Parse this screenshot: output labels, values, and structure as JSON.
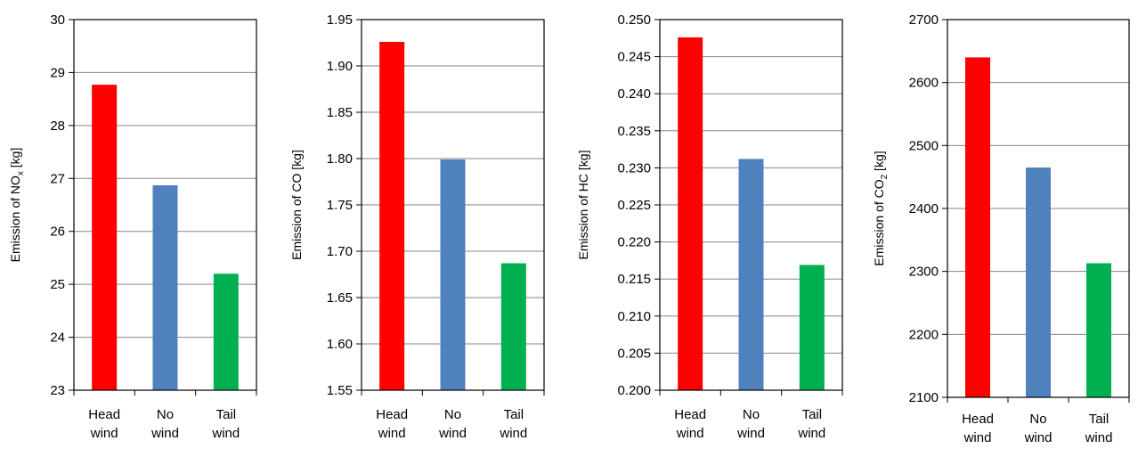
{
  "chart_data": [
    {
      "type": "bar",
      "categories": [
        [
          "Head",
          "wind"
        ],
        [
          "No",
          "wind"
        ],
        [
          "Tail",
          "wind"
        ]
      ],
      "values": [
        28.77,
        26.87,
        25.2
      ],
      "colors": [
        "#ff0000",
        "#4f81bd",
        "#00b050"
      ],
      "ylabel_parts": [
        [
          "Emission of NO",
          ""
        ],
        [
          "x",
          "sub"
        ],
        [
          " [kg]",
          ""
        ]
      ],
      "ylim": [
        23,
        30
      ],
      "yticks": [
        "23",
        "24",
        "25",
        "26",
        "27",
        "28",
        "29",
        "30"
      ],
      "grid": true,
      "legend": "none"
    },
    {
      "type": "bar",
      "categories": [
        [
          "Head",
          "wind"
        ],
        [
          "No",
          "wind"
        ],
        [
          "Tail",
          "wind"
        ]
      ],
      "values": [
        1.926,
        1.799,
        1.687
      ],
      "colors": [
        "#ff0000",
        "#4f81bd",
        "#00b050"
      ],
      "ylabel_parts": [
        [
          "Emission of  CO [kg]",
          ""
        ]
      ],
      "ylim": [
        1.55,
        1.95
      ],
      "yticks": [
        "1.55",
        "1.60",
        "1.65",
        "1.70",
        "1.75",
        "1.80",
        "1.85",
        "1.90",
        "1.95"
      ],
      "grid": true,
      "legend": "none"
    },
    {
      "type": "bar",
      "categories": [
        [
          "Head",
          "wind"
        ],
        [
          "No",
          "wind"
        ],
        [
          "Tail",
          "wind"
        ]
      ],
      "values": [
        0.2476,
        0.2312,
        0.2169
      ],
      "colors": [
        "#ff0000",
        "#4f81bd",
        "#00b050"
      ],
      "ylabel_parts": [
        [
          "Emission of  HC [kg]",
          ""
        ]
      ],
      "ylim": [
        0.2,
        0.25
      ],
      "yticks": [
        "0.200",
        "0.205",
        "0.210",
        "0.215",
        "0.220",
        "0.225",
        "0.230",
        "0.235",
        "0.240",
        "0.245",
        "0.250"
      ],
      "grid": true,
      "legend": "none"
    },
    {
      "type": "bar",
      "categories": [
        [
          "Head",
          "wind"
        ],
        [
          "No",
          "wind"
        ],
        [
          "Tail",
          "wind"
        ]
      ],
      "values": [
        2640,
        2465,
        2313
      ],
      "colors": [
        "#ff0000",
        "#4f81bd",
        "#00b050"
      ],
      "ylabel_parts": [
        [
          "Emission of  CO",
          ""
        ],
        [
          "2",
          "sub"
        ],
        [
          " [kg]",
          ""
        ]
      ],
      "ylim": [
        2100,
        2700
      ],
      "yticks": [
        "2100",
        "2200",
        "2300",
        "2400",
        "2500",
        "2600",
        "2700"
      ],
      "grid": true,
      "legend": "none"
    }
  ]
}
